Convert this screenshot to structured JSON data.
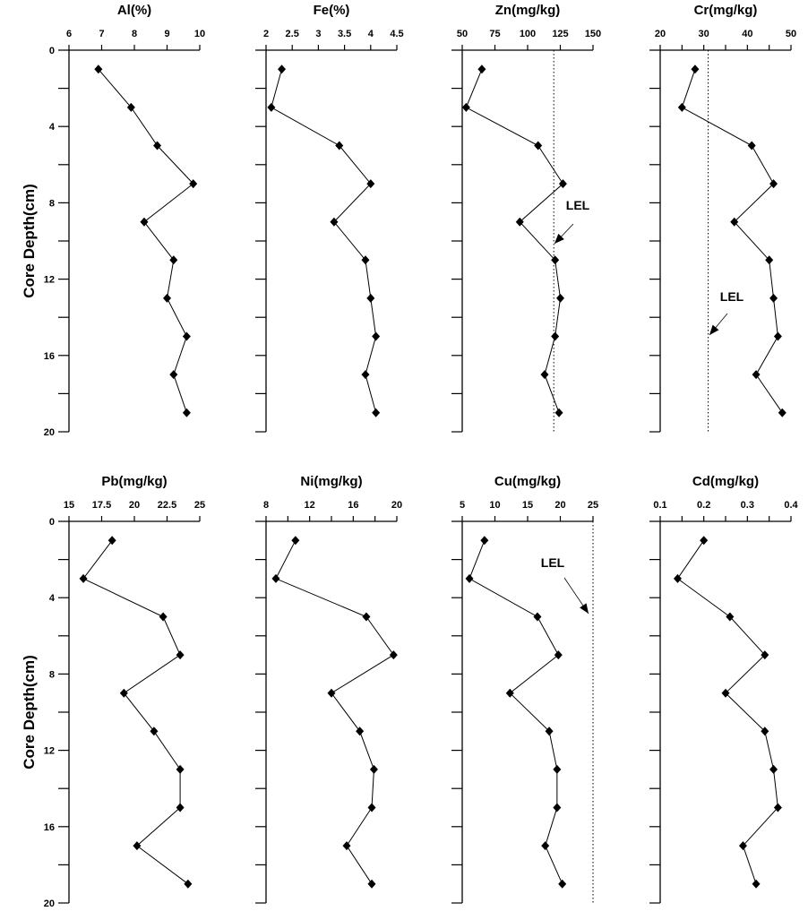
{
  "chart_data": [
    {
      "type": "line",
      "title": "Al(%)",
      "ylabel": "Core Depth(cm)",
      "xlim": [
        6,
        10
      ],
      "xticks": [
        6,
        7,
        8,
        9,
        10
      ],
      "xminor": 1,
      "depth": [
        1,
        3,
        5,
        7,
        9,
        11,
        13,
        15,
        17,
        19
      ],
      "values": [
        6.9,
        7.9,
        8.7,
        9.8,
        8.3,
        9.2,
        9.0,
        9.6,
        9.2,
        9.6
      ],
      "ylim": [
        0,
        20
      ],
      "yticks": [
        0,
        4,
        8,
        12,
        16,
        20
      ]
    },
    {
      "type": "line",
      "title": "Fe(%)",
      "xlim": [
        2,
        4.5
      ],
      "xticks": [
        2,
        2.5,
        3,
        3.5,
        4,
        4.5
      ],
      "xminor": 0.5,
      "depth": [
        1,
        3,
        5,
        7,
        9,
        11,
        13,
        15,
        17,
        19
      ],
      "values": [
        2.3,
        2.1,
        3.4,
        4.0,
        3.3,
        3.9,
        4.0,
        4.1,
        3.9,
        4.1
      ],
      "ylim": [
        0,
        20
      ]
    },
    {
      "type": "line",
      "title": "Zn(mg/kg)",
      "xlim": [
        50,
        150
      ],
      "xticks": [
        50,
        75,
        100,
        125,
        150
      ],
      "xminor": 25,
      "depth": [
        1,
        3,
        5,
        7,
        9,
        11,
        13,
        15,
        17,
        19
      ],
      "values": [
        65,
        53,
        108,
        127,
        94,
        121,
        125,
        121,
        113,
        124
      ],
      "ylim": [
        0,
        20
      ],
      "reference_line": {
        "label": "LEL",
        "value": 120
      }
    },
    {
      "type": "line",
      "title": "Cr(mg/kg)",
      "xlim": [
        20,
        50
      ],
      "xticks": [
        20,
        30,
        40,
        50
      ],
      "xminor": 5,
      "depth": [
        1,
        3,
        5,
        7,
        9,
        11,
        13,
        15,
        17,
        19
      ],
      "values": [
        28,
        25,
        41,
        46,
        37,
        45,
        46,
        47,
        42,
        48
      ],
      "ylim": [
        0,
        20
      ],
      "reference_line": {
        "label": "LEL",
        "value": 31
      }
    },
    {
      "type": "line",
      "title": "Pb(mg/kg)",
      "ylabel": "Core Depth(cm)",
      "xlim": [
        15,
        25
      ],
      "xticks": [
        15,
        17.5,
        20,
        22.5,
        25
      ],
      "xminor": 2.5,
      "depth": [
        1,
        3,
        5,
        7,
        9,
        11,
        13,
        15,
        17,
        19
      ],
      "values": [
        18.3,
        16.1,
        22.2,
        23.5,
        19.2,
        21.5,
        23.5,
        23.5,
        20.2,
        24.1
      ],
      "ylim": [
        0,
        20
      ],
      "yticks": [
        0,
        4,
        8,
        12,
        16,
        20
      ]
    },
    {
      "type": "line",
      "title": "Ni(mg/kg)",
      "xlim": [
        8,
        20
      ],
      "xticks": [
        8,
        12,
        16,
        20
      ],
      "xminor": 2,
      "depth": [
        1,
        3,
        5,
        7,
        9,
        11,
        13,
        15,
        17,
        19
      ],
      "values": [
        10.7,
        8.9,
        17.2,
        19.7,
        14.0,
        16.6,
        17.9,
        17.7,
        15.4,
        17.7
      ],
      "ylim": [
        0,
        20
      ]
    },
    {
      "type": "line",
      "title": "Cu(mg/kg)",
      "xlim": [
        5,
        25
      ],
      "xticks": [
        5,
        10,
        15,
        20,
        25
      ],
      "xminor": 5,
      "depth": [
        1,
        3,
        5,
        7,
        9,
        11,
        13,
        15,
        17,
        19
      ],
      "values": [
        8.4,
        6.1,
        16.5,
        19.7,
        12.3,
        18.3,
        19.5,
        19.5,
        17.7,
        20.3
      ],
      "ylim": [
        0,
        20
      ],
      "reference_line": {
        "label": "LEL",
        "value": 25
      }
    },
    {
      "type": "line",
      "title": "Cd(mg/kg)",
      "xlim": [
        0.1,
        0.4
      ],
      "xticks": [
        0.1,
        0.2,
        0.3,
        0.4
      ],
      "xminor": 0.05,
      "depth": [
        1,
        3,
        5,
        7,
        9,
        11,
        13,
        15,
        17,
        19
      ],
      "values": [
        0.2,
        0.14,
        0.26,
        0.34,
        0.25,
        0.34,
        0.36,
        0.37,
        0.29,
        0.32
      ],
      "ylim": [
        0,
        20
      ]
    }
  ]
}
